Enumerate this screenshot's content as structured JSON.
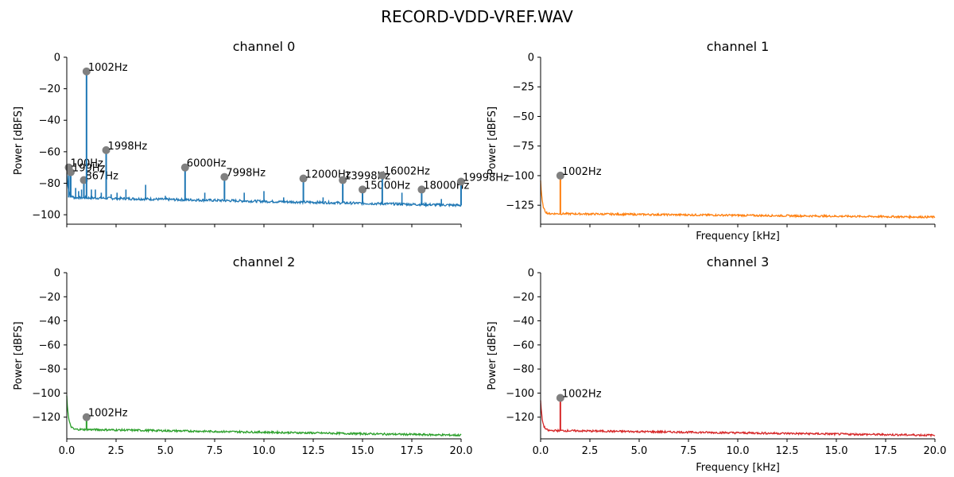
{
  "figure": {
    "suptitle": "RECORD-VDD-VREF.WAV"
  },
  "colors": {
    "marker": "#808080",
    "spine": "#000000"
  },
  "chart_data": [
    {
      "type": "line",
      "title": "channel 0",
      "xlabel": "",
      "ylabel": "Power [dBFS]",
      "xlim": [
        0,
        20
      ],
      "ylim": [
        -106,
        0
      ],
      "xticks": [
        0,
        2.5,
        5,
        7.5,
        10,
        12.5,
        15,
        17.5,
        20
      ],
      "xtick_labels": [],
      "yticks": [
        0,
        -20,
        -40,
        -60,
        -80,
        -100
      ],
      "ytick_labels": [
        "0",
        "−20",
        "−40",
        "−60",
        "−80",
        "−100"
      ],
      "color": "#1f77b4",
      "noise_floor": {
        "start": -89,
        "end": -94
      },
      "low_freq_rise": {
        "edge_x": 0.2,
        "edge_y": -74
      },
      "minor_spurs": [
        {
          "x": 0.45,
          "y": -83
        },
        {
          "x": 0.6,
          "y": -85
        },
        {
          "x": 0.75,
          "y": -84
        },
        {
          "x": 1.25,
          "y": -84
        },
        {
          "x": 1.45,
          "y": -84
        },
        {
          "x": 1.75,
          "y": -86
        },
        {
          "x": 2.25,
          "y": -87
        },
        {
          "x": 2.55,
          "y": -86
        },
        {
          "x": 3.0,
          "y": -84
        },
        {
          "x": 4.0,
          "y": -81
        },
        {
          "x": 5.0,
          "y": -88
        },
        {
          "x": 7.0,
          "y": -86
        },
        {
          "x": 9.0,
          "y": -86
        },
        {
          "x": 10.0,
          "y": -85
        },
        {
          "x": 11.0,
          "y": -89
        },
        {
          "x": 13.0,
          "y": -89
        },
        {
          "x": 17.0,
          "y": -86
        },
        {
          "x": 19.0,
          "y": -90
        }
      ],
      "peaks": [
        {
          "x": 0.1,
          "y": -70,
          "label": "100Hz"
        },
        {
          "x": 0.199,
          "y": -73,
          "label": "199Hz"
        },
        {
          "x": 0.867,
          "y": -78,
          "label": "867Hz"
        },
        {
          "x": 1.002,
          "y": -9,
          "label": "1002Hz"
        },
        {
          "x": 1.998,
          "y": -59,
          "label": "1998Hz"
        },
        {
          "x": 6.0,
          "y": -70,
          "label": "6000Hz"
        },
        {
          "x": 7.998,
          "y": -76,
          "label": "7998Hz"
        },
        {
          "x": 12.0,
          "y": -77,
          "label": "12000Hz"
        },
        {
          "x": 13.998,
          "y": -78,
          "label": "13998Hz"
        },
        {
          "x": 15.0,
          "y": -84,
          "label": "15000Hz"
        },
        {
          "x": 16.002,
          "y": -75,
          "label": "16002Hz"
        },
        {
          "x": 18.0,
          "y": -84,
          "label": "18000Hz"
        },
        {
          "x": 19.998,
          "y": -79,
          "label": "19998Hz"
        }
      ]
    },
    {
      "type": "line",
      "title": "channel 1",
      "xlabel": "Frequency [kHz]",
      "ylabel": "Power [dBFS]",
      "xlim": [
        0,
        20
      ],
      "ylim": [
        -141,
        0
      ],
      "xticks": [
        0,
        2.5,
        5,
        7.5,
        10,
        12.5,
        15,
        17.5,
        20
      ],
      "xtick_labels": [],
      "yticks": [
        0,
        -25,
        -50,
        -75,
        -100,
        -125
      ],
      "ytick_labels": [
        "0",
        "−25",
        "−50",
        "−75",
        "−100",
        "−125"
      ],
      "color": "#ff7f0e",
      "noise_floor": {
        "start": -132,
        "end": -135
      },
      "low_freq_rise": {
        "edge_x": 0.0,
        "edge_y": -104
      },
      "minor_spurs": [],
      "peaks": [
        {
          "x": 1.002,
          "y": -100,
          "label": "1002Hz"
        }
      ]
    },
    {
      "type": "line",
      "title": "channel 2",
      "xlabel": "",
      "ylabel": "Power [dBFS]",
      "xlim": [
        0,
        20
      ],
      "ylim": [
        -138,
        0
      ],
      "xticks": [
        0,
        2.5,
        5,
        7.5,
        10,
        12.5,
        15,
        17.5,
        20
      ],
      "xtick_labels": [
        "0.0",
        "2.5",
        "5.0",
        "7.5",
        "10.0",
        "12.5",
        "15.0",
        "17.5",
        "20.0"
      ],
      "yticks": [
        0,
        -20,
        -40,
        -60,
        -80,
        -100,
        -120
      ],
      "ytick_labels": [
        "0",
        "−20",
        "−40",
        "−60",
        "−80",
        "−100",
        "−120"
      ],
      "color": "#2ca02c",
      "noise_floor": {
        "start": -130,
        "end": -135
      },
      "low_freq_rise": {
        "edge_x": 0.0,
        "edge_y": -102
      },
      "minor_spurs": [],
      "peaks": [
        {
          "x": 1.002,
          "y": -120,
          "label": "1002Hz"
        }
      ]
    },
    {
      "type": "line",
      "title": "channel 3",
      "xlabel": "Frequency [kHz]",
      "ylabel": "Power [dBFS]",
      "xlim": [
        0,
        20
      ],
      "ylim": [
        -138,
        0
      ],
      "xticks": [
        0,
        2.5,
        5,
        7.5,
        10,
        12.5,
        15,
        17.5,
        20
      ],
      "xtick_labels": [
        "0.0",
        "2.5",
        "5.0",
        "7.5",
        "10.0",
        "12.5",
        "15.0",
        "17.5",
        "20.0"
      ],
      "yticks": [
        0,
        -20,
        -40,
        -60,
        -80,
        -100,
        -120
      ],
      "ytick_labels": [
        "0",
        "−20",
        "−40",
        "−60",
        "−80",
        "−100",
        "−120"
      ],
      "color": "#d62728",
      "noise_floor": {
        "start": -131,
        "end": -135
      },
      "low_freq_rise": {
        "edge_x": 0.0,
        "edge_y": -106
      },
      "minor_spurs": [],
      "peaks": [
        {
          "x": 1.002,
          "y": -104,
          "label": "1002Hz"
        }
      ]
    }
  ]
}
